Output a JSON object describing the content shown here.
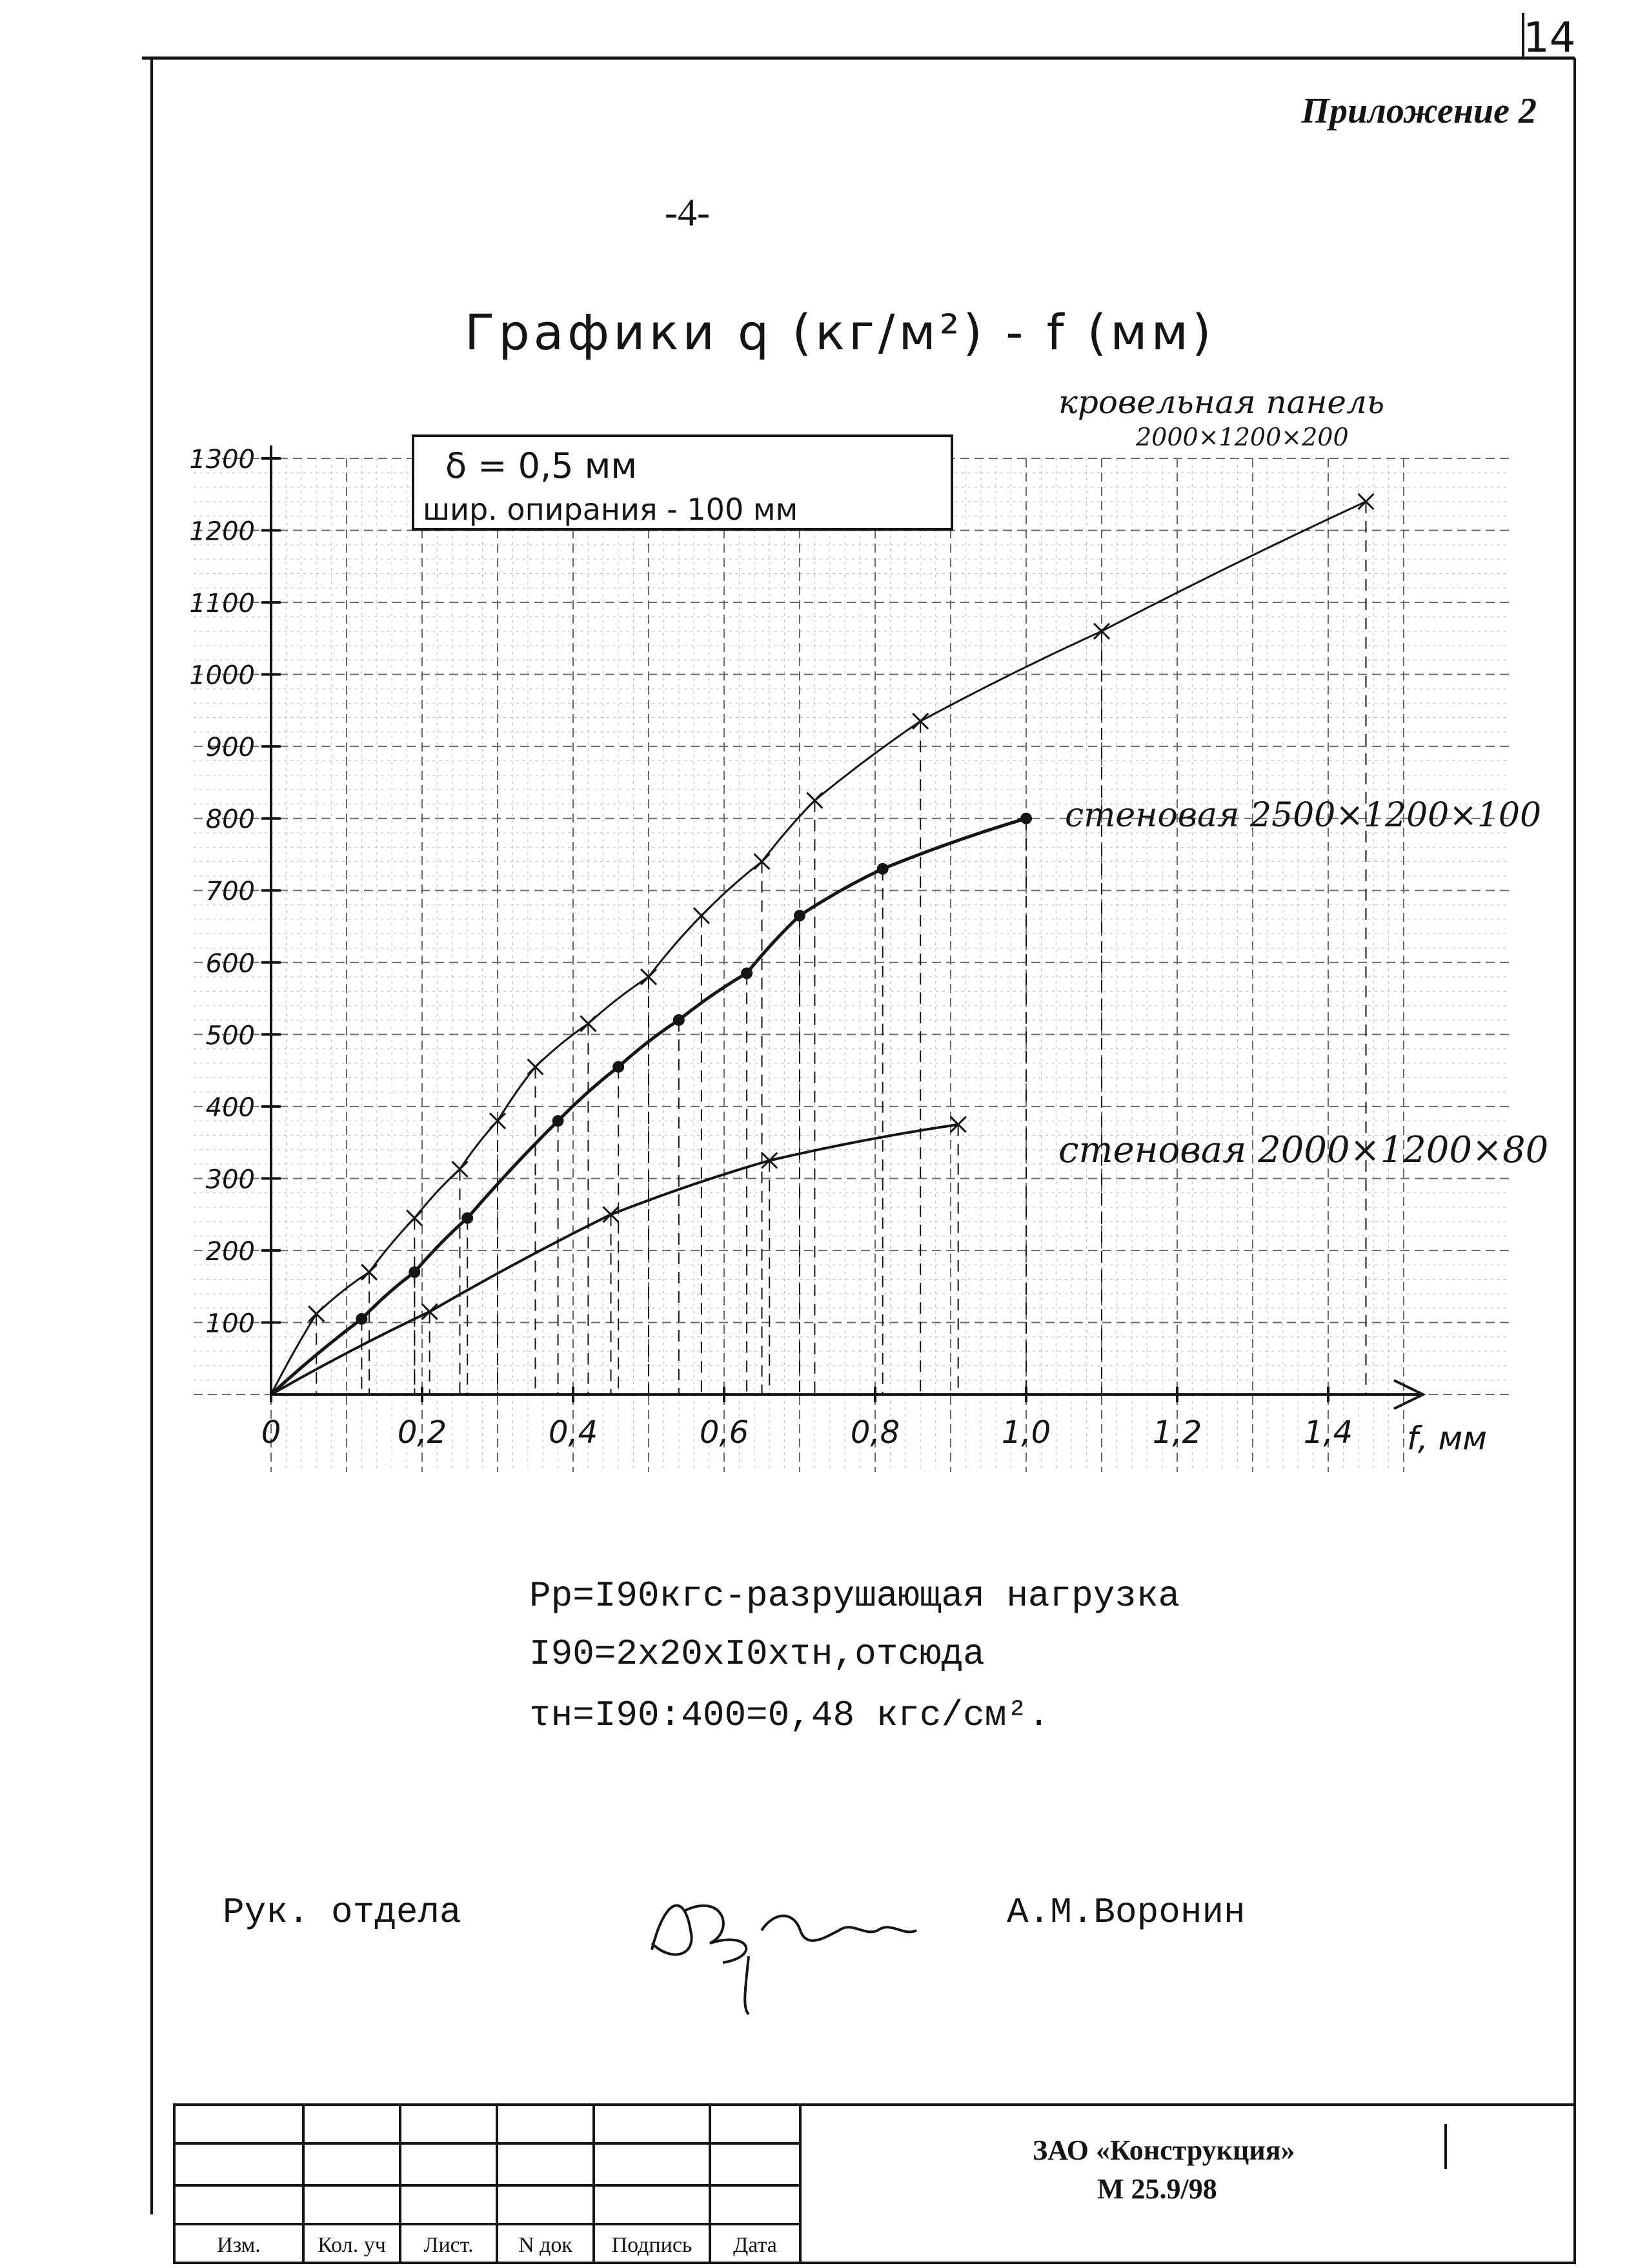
{
  "page": {
    "sheet_number": "14",
    "appendix_label": "Приложение 2",
    "page_number": "-4-"
  },
  "chart_data": {
    "type": "line",
    "title": "Графики q (кг/м²) - f (мм)",
    "xlabel": "f, мм",
    "ylabel": "",
    "x_tick_labels": [
      "0",
      "0,2",
      "0,4",
      "0,6",
      "0,8",
      "1,0",
      "1,2",
      "1,4"
    ],
    "x_tick_values": [
      0,
      0.2,
      0.4,
      0.6,
      0.8,
      1.0,
      1.2,
      1.4
    ],
    "y_tick_labels": [
      "100",
      "200",
      "300",
      "400",
      "500",
      "600",
      "700",
      "800",
      "900",
      "1000",
      "1100",
      "1200",
      "1300"
    ],
    "y_tick_values": [
      100,
      200,
      300,
      400,
      500,
      600,
      700,
      800,
      900,
      1000,
      1100,
      1200,
      1300
    ],
    "xlim": [
      0,
      1.5
    ],
    "ylim": [
      0,
      1300
    ],
    "grid": true,
    "legend_box": {
      "line1": "δ = 0,5 мм",
      "line2": "шир. опирания - 100 мм"
    },
    "series": [
      {
        "name": "кровельная панель 2000×1200×200",
        "marker": "x",
        "x": [
          0,
          0.06,
          0.13,
          0.19,
          0.25,
          0.3,
          0.35,
          0.42,
          0.5,
          0.57,
          0.65,
          0.72,
          0.86,
          1.1,
          1.45
        ],
        "y": [
          0,
          112,
          170,
          245,
          313,
          380,
          455,
          515,
          580,
          665,
          740,
          825,
          935,
          1060,
          1240
        ]
      },
      {
        "name": "стеновая 2500×1200×100",
        "marker": "dot",
        "x": [
          0,
          0.12,
          0.19,
          0.26,
          0.38,
          0.46,
          0.54,
          0.63,
          0.7,
          0.81,
          1.0
        ],
        "y": [
          0,
          105,
          170,
          245,
          380,
          455,
          520,
          585,
          665,
          730,
          800
        ]
      },
      {
        "name": "стеновая 2000×1200×80",
        "marker": "x",
        "x": [
          0,
          0.21,
          0.45,
          0.66,
          0.91
        ],
        "y": [
          0,
          115,
          250,
          325,
          375
        ]
      }
    ],
    "series_labels": [
      {
        "line1": "кровельная панель",
        "line2": "2000×1200×200"
      },
      {
        "line1": "стеновая 2500×1200×100"
      },
      {
        "line1": "стеновая 2000×1200×80"
      }
    ]
  },
  "notes": [
    "Рр=I90кгс-разрушающая нагрузка",
    "I90=2х20хI0хτн,отсюда",
    "τн=I90:400=0,48 кгс/см²."
  ],
  "signature": {
    "role": "Рук. отдела",
    "name": "А.М.Воронин",
    "signature_alt": "подпись"
  },
  "title_block": {
    "company": "ЗАО «Конструкция»",
    "document_number": "М 25.9/98",
    "columns": [
      "Изм.",
      "Кол. уч",
      "Лист.",
      "N док",
      "Подпись",
      "Дата"
    ]
  },
  "colors": {
    "ink": "#141414",
    "grid_fine": "#b8b8b8",
    "grid_major": "#6a6a6a",
    "paper": "#ffffff"
  }
}
